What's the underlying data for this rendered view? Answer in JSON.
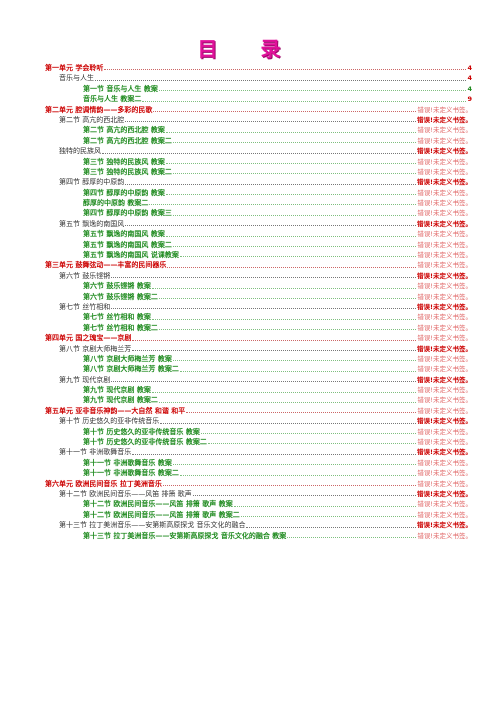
{
  "title": "目 录",
  "entries": [
    {
      "level": 1,
      "label": "第一单元  学会聆听",
      "page": "4",
      "style": "num"
    },
    {
      "level": 2,
      "label": "音乐与人生",
      "page": "4",
      "style": "num"
    },
    {
      "level": 3,
      "label": "第一节  音乐与人生  教案",
      "page": "4",
      "style": "green"
    },
    {
      "level": 3,
      "label": "音乐与人生  教案二",
      "page": "9",
      "style": "num"
    },
    {
      "level": 1,
      "label": "第二单元  腔调情韵——多彩的民歌",
      "page": "错误!未定义书签。",
      "style": "err"
    },
    {
      "level": 2,
      "label": "第二节  高亢的西北腔",
      "page": "错误!未定义书签。",
      "style": "errb"
    },
    {
      "level": 3,
      "label": "第二节  高亢的西北腔  教案",
      "page": "错误!未定义书签。",
      "style": "err"
    },
    {
      "level": 3,
      "label": "第二节  高亢的西北腔  教案二",
      "page": "错误!未定义书签。",
      "style": "err"
    },
    {
      "level": 2,
      "label": "独特的民族风",
      "page": "错误!未定义书签。",
      "style": "errb"
    },
    {
      "level": 3,
      "label": "第三节  独特的民族风  教案",
      "page": "错误!未定义书签。",
      "style": "err"
    },
    {
      "level": 3,
      "label": "第三节  独特的民族风  教案二",
      "page": "错误!未定义书签。",
      "style": "err"
    },
    {
      "level": 2,
      "label": "第四节  醇厚的中原韵",
      "page": "错误!未定义书签。",
      "style": "errb"
    },
    {
      "level": 3,
      "label": "第四节  醇厚的中原韵  教案",
      "page": "错误!未定义书签。",
      "style": "err"
    },
    {
      "level": 3,
      "label": "醇厚的中原韵  教案二",
      "page": "错误!未定义书签。",
      "style": "err"
    },
    {
      "level": 3,
      "label": "第四节  醇厚的中原韵  教案三",
      "page": "错误!未定义书签。",
      "style": "err"
    },
    {
      "level": 2,
      "label": "第五节  飘逸的南国风",
      "page": "错误!未定义书签。",
      "style": "errb"
    },
    {
      "level": 3,
      "label": "第五节  飘逸的南国风  教案",
      "page": "错误!未定义书签。",
      "style": "err"
    },
    {
      "level": 3,
      "label": "第五节  飘逸的南国风  教案二",
      "page": "错误!未定义书签。",
      "style": "err"
    },
    {
      "level": 3,
      "label": "第五节    飘逸的南国风  说课教案",
      "page": "错误!未定义书签。",
      "style": "err"
    },
    {
      "level": 1,
      "label": "第三单元  鼓舞弦动——丰富的民间器乐",
      "page": "错误!未定义书签。",
      "style": "err"
    },
    {
      "level": 2,
      "label": "第六节  鼓乐铿锵",
      "page": "错误!未定义书签。",
      "style": "errb"
    },
    {
      "level": 3,
      "label": "第六节  鼓乐铿锵  教案",
      "page": "错误!未定义书签。",
      "style": "err"
    },
    {
      "level": 3,
      "label": "第六节  鼓乐铿锵  教案二",
      "page": "错误!未定义书签。",
      "style": "err"
    },
    {
      "level": 2,
      "label": "第七节  丝竹相和",
      "page": "错误!未定义书签。",
      "style": "errb"
    },
    {
      "level": 3,
      "label": "第七节  丝竹相和  教案",
      "page": "错误!未定义书签。",
      "style": "err"
    },
    {
      "level": 3,
      "label": "第七节  丝竹相和  教案二",
      "page": "错误!未定义书签。",
      "style": "err"
    },
    {
      "level": 1,
      "label": "第四单元  国之瑰宝——京剧",
      "page": "错误!未定义书签。",
      "style": "err"
    },
    {
      "level": 2,
      "label": "第八节  京剧大师梅兰芳",
      "page": "错误!未定义书签。",
      "style": "errb"
    },
    {
      "level": 3,
      "label": "第八节  京剧大师梅兰芳  教案",
      "page": "错误!未定义书签。",
      "style": "err"
    },
    {
      "level": 3,
      "label": "第八节  京剧大师梅兰芳  教案二",
      "page": "错误!未定义书签。",
      "style": "err"
    },
    {
      "level": 2,
      "label": "第九节  现代京剧",
      "page": "错误!未定义书签。",
      "style": "errb"
    },
    {
      "level": 3,
      "label": "第九节  现代京剧  教案",
      "page": "错误!未定义书签。",
      "style": "err"
    },
    {
      "level": 3,
      "label": "第九节  现代京剧  教案二",
      "page": "错误!未定义书签。",
      "style": "err"
    },
    {
      "level": 1,
      "label": "第五单元  亚非音乐神韵——大自然 和谐 和平",
      "page": "错误!未定义书签。",
      "style": "err"
    },
    {
      "level": 2,
      "label": "第十节  历史悠久的亚非传统音乐",
      "page": "错误!未定义书签。",
      "style": "errb"
    },
    {
      "level": 3,
      "label": "第十节  历史悠久的亚非传统音乐  教案",
      "page": "错误!未定义书签。",
      "style": "err"
    },
    {
      "level": 3,
      "label": "第十节  历史悠久的亚非传统音乐  教案二",
      "page": "错误!未定义书签。",
      "style": "err"
    },
    {
      "level": 2,
      "label": "第十一节  非洲歌舞音乐",
      "page": "错误!未定义书签。",
      "style": "errb"
    },
    {
      "level": 3,
      "label": "第十一节  非洲歌舞音乐  教案",
      "page": "错误!未定义书签。",
      "style": "err"
    },
    {
      "level": 3,
      "label": "第十一节  非洲歌舞音乐  教案二",
      "page": "错误!未定义书签。",
      "style": "err"
    },
    {
      "level": 1,
      "label": "第六单元  欧洲民间音乐  拉丁美洲音乐",
      "page": "错误!未定义书签。",
      "style": "err"
    },
    {
      "level": 2,
      "label": "第十二节  欧洲民间音乐——风笛 排箫 歌声",
      "page": "错误!未定义书签。",
      "style": "errb"
    },
    {
      "level": 3,
      "label": "第十二节  欧洲民间音乐——风笛 排箫 歌声  教案",
      "page": "错误!未定义书签。",
      "style": "err"
    },
    {
      "level": 3,
      "label": "第十二节  欧洲民间音乐——风笛 排箫 歌声  教案二",
      "page": "错误!未定义书签。",
      "style": "err"
    },
    {
      "level": 2,
      "label": "第十三节  拉丁美洲音乐——安第斯高原探戈 音乐文化的融合",
      "page": "错误!未定义书签。",
      "style": "errb"
    },
    {
      "level": 3,
      "label": "第十三节  拉丁美洲音乐——安第斯高原探戈 音乐文化的融合  教案",
      "page": "错误!未定义书签。",
      "style": "err"
    }
  ]
}
